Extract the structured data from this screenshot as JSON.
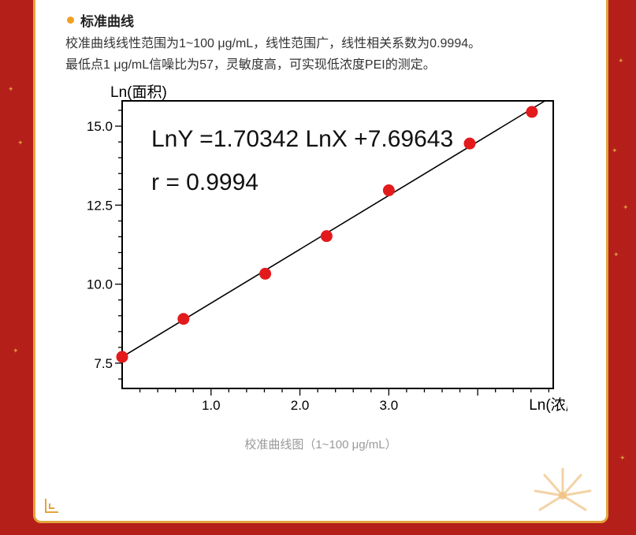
{
  "article": {
    "heading": "标准曲线",
    "paragraph_line1": "校准曲线线性范围为1~100 μg/mL，线性范围广，线性相关系数为0.9994。",
    "paragraph_line2": "最低点1 μg/mL信噪比为57，灵敏度高，可实现低浓度PEI的测定。",
    "caption": "校准曲线图（1~100 μg/mL）"
  },
  "chart_data": {
    "type": "scatter",
    "title": "",
    "xlabel": "Ln(浓度)",
    "ylabel": "Ln(面积)",
    "xlim": [
      0,
      4.85
    ],
    "ylim": [
      6.7,
      15.8
    ],
    "xticks": [
      1.0,
      2.0,
      3.0
    ],
    "xtick_labels": [
      "1.0",
      "2.0",
      "3.0"
    ],
    "yticks": [
      7.5,
      10.0,
      12.5,
      15.0
    ],
    "ytick_labels": [
      "7.5",
      "10.0",
      "12.5",
      "15.0"
    ],
    "equation": "LnY =1.70342 LnX +7.69643",
    "r_label": "r = 0.9994",
    "grid": false,
    "fit": {
      "slope": 1.70342,
      "intercept": 7.69643
    },
    "series": [
      {
        "x": [
          0.0,
          0.69,
          1.61,
          2.3,
          3.0,
          3.91,
          4.61
        ],
        "y": [
          7.7,
          8.9,
          10.33,
          11.52,
          12.97,
          14.45,
          15.45
        ]
      }
    ],
    "colors": {
      "points": "#e31a1c",
      "line": "#000000",
      "axes": "#000000"
    }
  }
}
